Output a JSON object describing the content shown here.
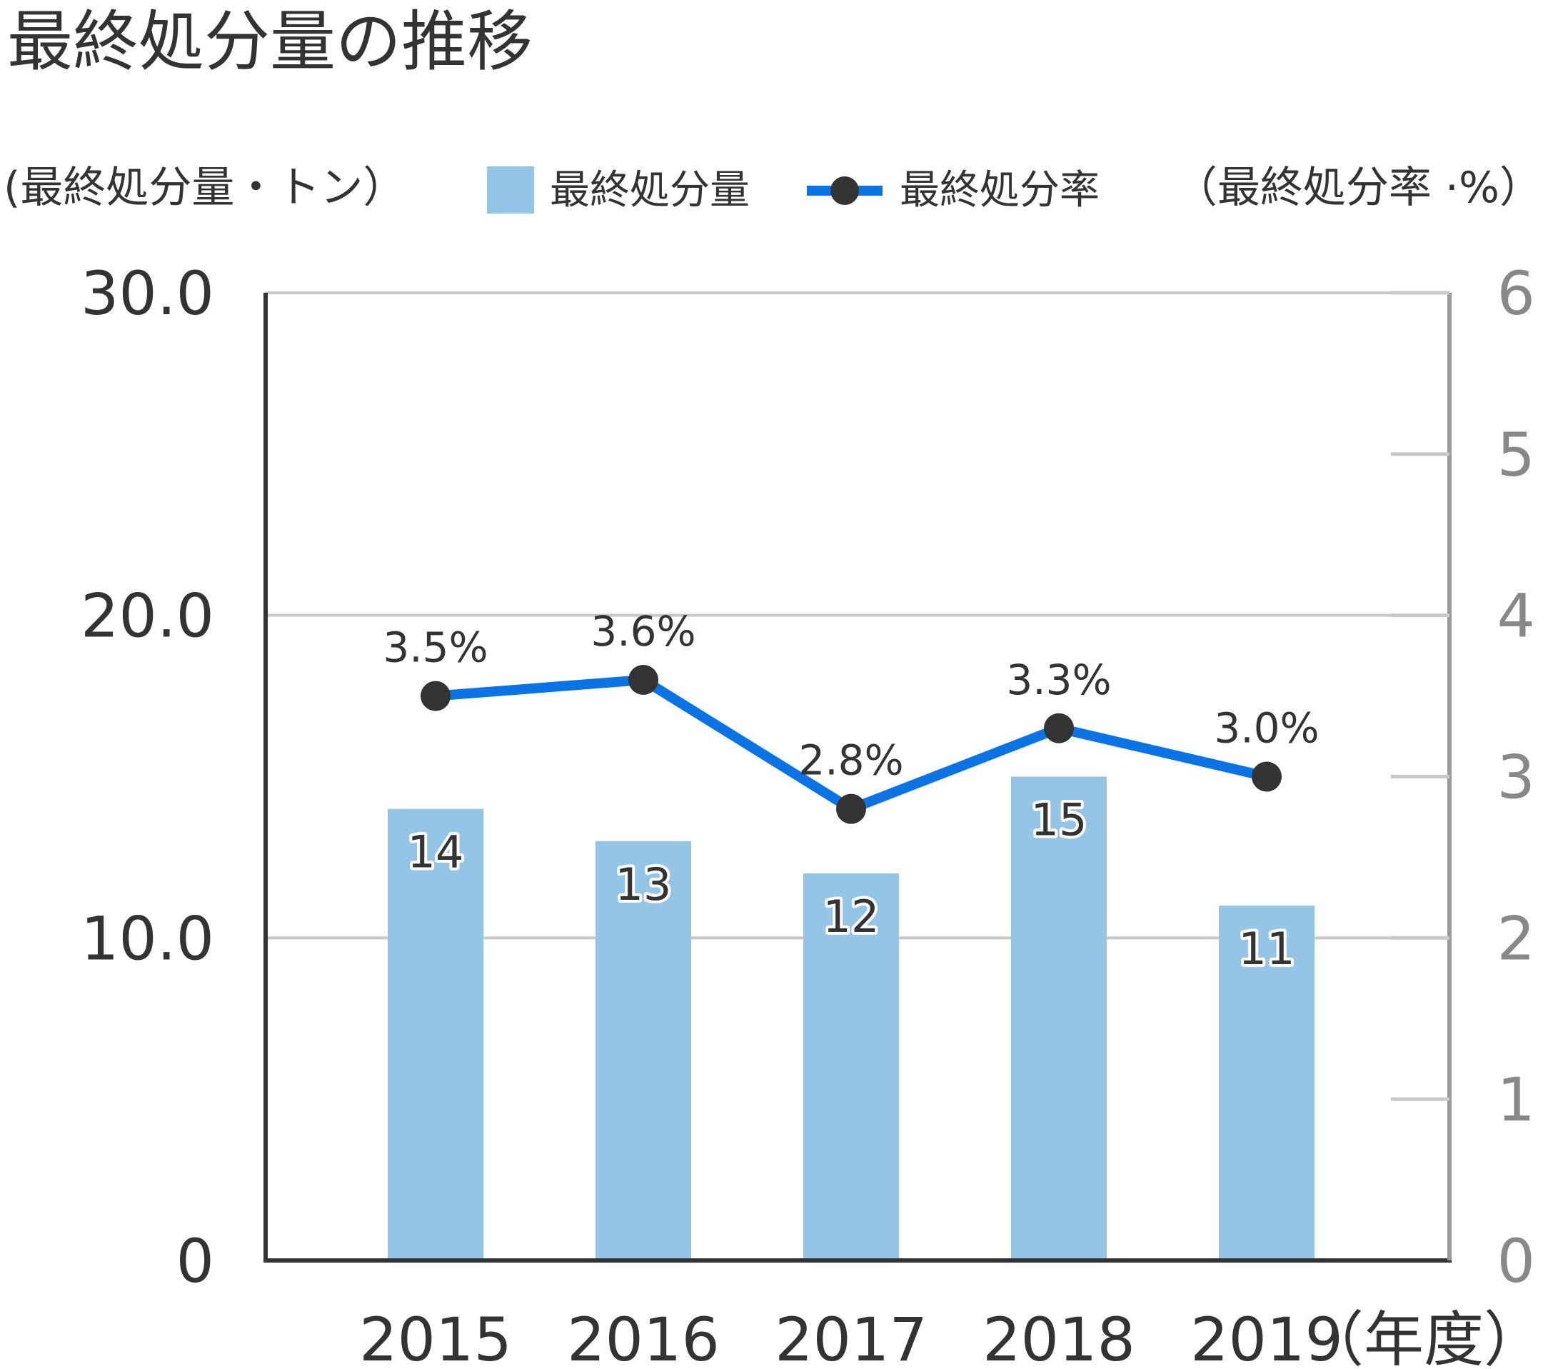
{
  "title": "最終処分量の推移",
  "colors": {
    "bar": "#94c5e6",
    "line": "#0a74e6",
    "marker": "#333333",
    "axis_left": "#333333",
    "axis_right": "#999999",
    "grid": "#c8c8c8"
  },
  "chart_data": {
    "type": "bar",
    "categories": [
      "2015",
      "2016",
      "2017",
      "2018",
      "2019"
    ],
    "xlabel": "（年度）",
    "left_axis": {
      "label": "(最終処分量・トン）",
      "range": [
        0,
        30
      ],
      "ticks": [
        "0",
        "10.0",
        "20.0",
        "30.0"
      ]
    },
    "right_axis": {
      "label": "（最終処分率 ·%）",
      "range": [
        0,
        6
      ],
      "ticks": [
        "0",
        "1",
        "2",
        "3",
        "4",
        "5",
        "6"
      ]
    },
    "series": [
      {
        "name": "最終処分量",
        "type": "bar",
        "axis": "left",
        "values": [
          14,
          13,
          12,
          15,
          11
        ],
        "labels": [
          "14",
          "13",
          "12",
          "15",
          "11"
        ]
      },
      {
        "name": "最終処分率",
        "type": "line",
        "axis": "right",
        "values": [
          3.5,
          3.6,
          2.8,
          3.3,
          3.0
        ],
        "labels": [
          "3.5%",
          "3.6%",
          "2.8%",
          "3.3%",
          "3.0%"
        ]
      }
    ],
    "grid": true,
    "legend_position": "top"
  }
}
